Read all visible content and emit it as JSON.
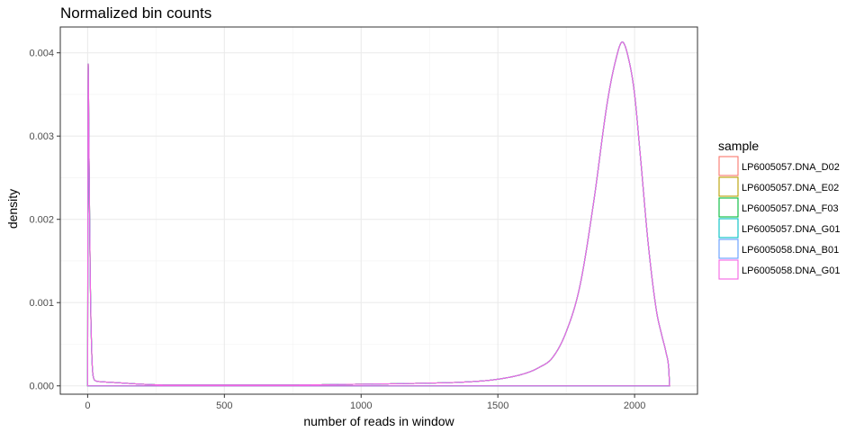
{
  "chart_data": {
    "type": "density",
    "title": "Normalized bin counts",
    "xlabel": "number of reads in window",
    "ylabel": "density",
    "xlim": [
      -100,
      2230
    ],
    "ylim": [
      -0.0001,
      0.00431
    ],
    "x_ticks": [
      0,
      500,
      1000,
      1500,
      2000
    ],
    "x_tick_labels": [
      "0",
      "500",
      "1000",
      "1500",
      "2000"
    ],
    "y_ticks": [
      0.0,
      0.001,
      0.002,
      0.003,
      0.004
    ],
    "y_tick_labels": [
      "0.000",
      "0.001",
      "0.002",
      "0.003",
      "0.004"
    ],
    "grid": true,
    "legend": {
      "title": "sample",
      "position": "right",
      "entries": [
        {
          "name": "LP6005057.DNA_D02",
          "color": "#F8766D"
        },
        {
          "name": "LP6005057.DNA_E02",
          "color": "#B79F00"
        },
        {
          "name": "LP6005057.DNA_F03",
          "color": "#00BA38"
        },
        {
          "name": "LP6005057.DNA_G01",
          "color": "#00BFC4"
        },
        {
          "name": "LP6005058.DNA_B01",
          "color": "#619CFF"
        },
        {
          "name": "LP6005058.DNA_G01",
          "color": "#F564E3"
        }
      ]
    },
    "curve": {
      "x": [
        0,
        2,
        5,
        10,
        15,
        20,
        30,
        50,
        100,
        200,
        300,
        500,
        700,
        1000,
        1200,
        1400,
        1500,
        1600,
        1650,
        1700,
        1750,
        1800,
        1850,
        1900,
        1930,
        1955,
        1980,
        2000,
        2020,
        2050,
        2080,
        2100,
        2115,
        2125,
        2128
      ],
      "y": [
        0.0,
        0.00387,
        0.0028,
        0.0012,
        0.0004,
        0.00012,
        6e-05,
        5e-05,
        4e-05,
        2e-05,
        1e-05,
        1e-05,
        1e-05,
        2e-05,
        3e-05,
        5e-05,
        8e-05,
        0.00015,
        0.00022,
        0.00034,
        0.00065,
        0.0012,
        0.0022,
        0.0034,
        0.0039,
        0.00413,
        0.0039,
        0.0035,
        0.0028,
        0.0017,
        0.0009,
        0.0006,
        0.0004,
        0.0002,
        0.0
      ]
    }
  }
}
